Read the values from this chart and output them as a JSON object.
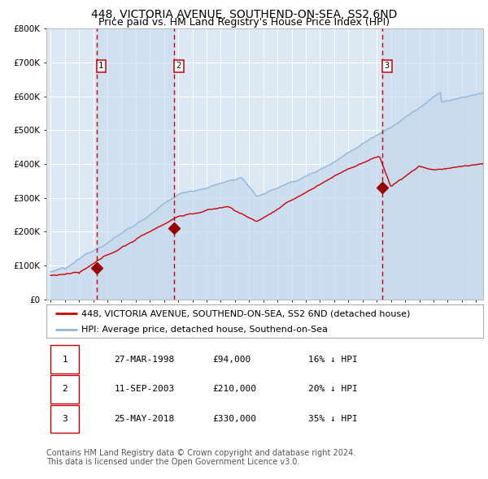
{
  "title1": "448, VICTORIA AVENUE, SOUTHEND-ON-SEA, SS2 6ND",
  "title2": "Price paid vs. HM Land Registry's House Price Index (HPI)",
  "ylim": [
    0,
    800000
  ],
  "yticks": [
    0,
    100000,
    200000,
    300000,
    400000,
    500000,
    600000,
    700000,
    800000
  ],
  "ytick_labels": [
    "£0",
    "£100K",
    "£200K",
    "£300K",
    "£400K",
    "£500K",
    "£600K",
    "£700K",
    "£800K"
  ],
  "hpi_color": "#92b8d8",
  "hpi_fill_color": "#c5d9ec",
  "price_color": "#cc0000",
  "bg_color": "#dce9f5",
  "grid_color": "#ffffff",
  "sale_dates": [
    1998.23,
    2003.71,
    2018.4
  ],
  "sale_prices": [
    94000,
    210000,
    330000
  ],
  "sale_labels": [
    "1",
    "2",
    "3"
  ],
  "vline_color": "#cc0000",
  "marker_color": "#990000",
  "legend_label_red": "448, VICTORIA AVENUE, SOUTHEND-ON-SEA, SS2 6ND (detached house)",
  "legend_label_blue": "HPI: Average price, detached house, Southend-on-Sea",
  "table_rows": [
    [
      "1",
      "27-MAR-1998",
      "£94,000",
      "16% ↓ HPI"
    ],
    [
      "2",
      "11-SEP-2003",
      "£210,000",
      "20% ↓ HPI"
    ],
    [
      "3",
      "25-MAY-2018",
      "£330,000",
      "35% ↓ HPI"
    ]
  ],
  "footnote1": "Contains HM Land Registry data © Crown copyright and database right 2024.",
  "footnote2": "This data is licensed under the Open Government Licence v3.0.",
  "title_fontsize": 10,
  "subtitle_fontsize": 9,
  "tick_fontsize": 7.5,
  "legend_fontsize": 8,
  "table_fontsize": 8,
  "footnote_fontsize": 7
}
